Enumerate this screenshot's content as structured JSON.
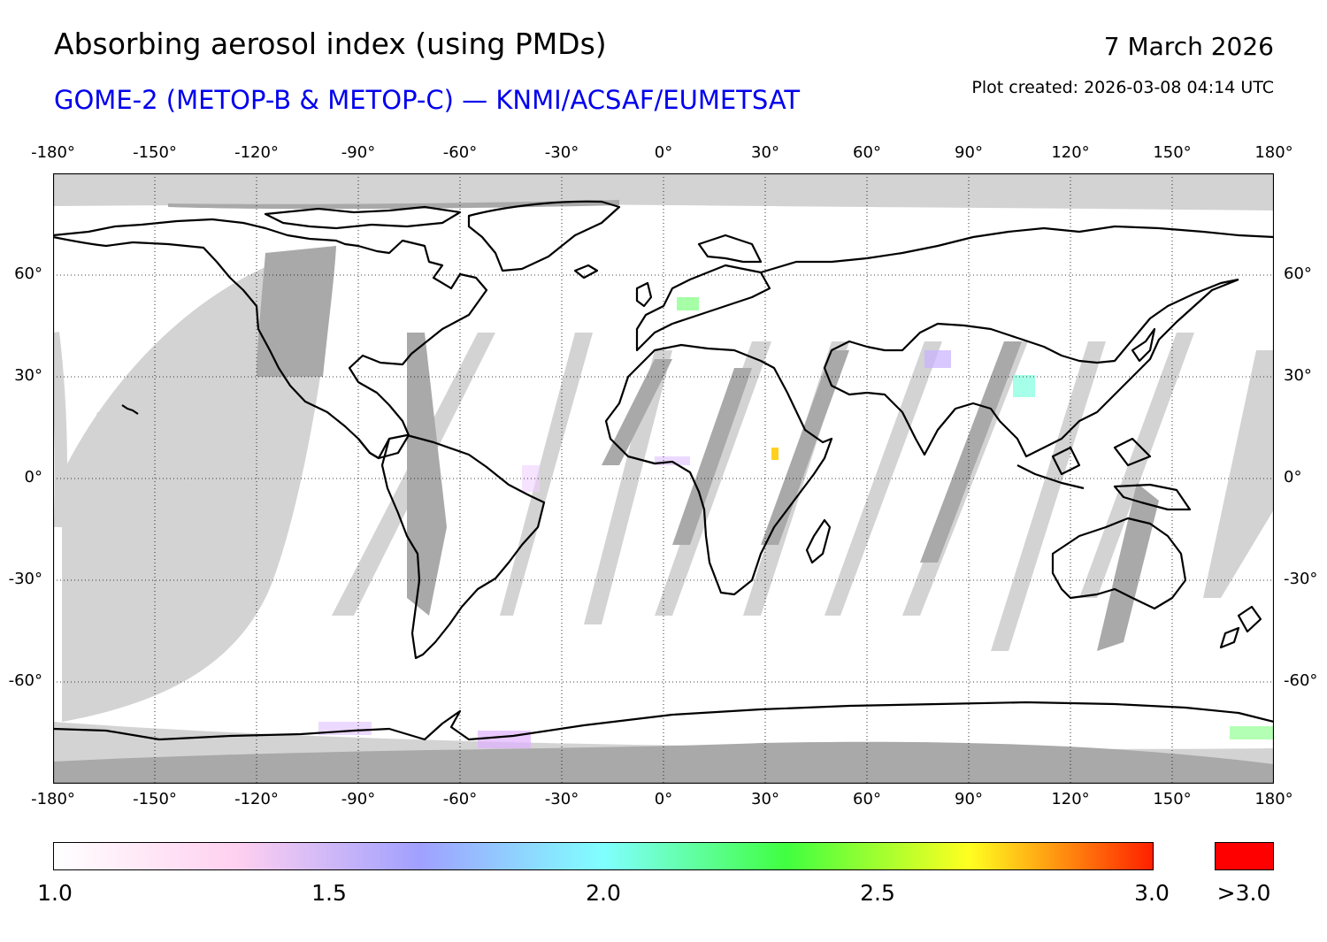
{
  "header": {
    "title": "Absorbing aerosol index (using PMDs)",
    "subtitle": "GOME-2 (METOP-B & METOP-C) — KNMI/ACSAF/EUMETSAT",
    "subtitle_color": "#0000ee",
    "date": "7 March 2026",
    "created": "Plot created: 2026-03-08 04:14 UTC"
  },
  "map": {
    "projection": "plate carree",
    "grid": true,
    "lon_labels": [
      "-180°",
      "-150°",
      "-120°",
      "-90°",
      "-60°",
      "-30°",
      "0°",
      "30°",
      "60°",
      "90°",
      "120°",
      "150°",
      "180°"
    ],
    "lat_labels": [
      "60°",
      "30°",
      "0°",
      "-30°",
      "-60°"
    ],
    "colors": {
      "no_data": "#d3d3d3",
      "night": "#a9a9a9",
      "coast": "#000000"
    }
  },
  "colorbar": {
    "ticks": [
      "1.0",
      "1.5",
      "2.0",
      "2.5",
      "3.0"
    ],
    "over_label": ">3.0",
    "over_color": "#ff0000",
    "stops": [
      "#ffffff",
      "#ffd0f0",
      "#a0a0ff",
      "#80ffff",
      "#40ff40",
      "#ffff20",
      "#ff2000"
    ]
  }
}
